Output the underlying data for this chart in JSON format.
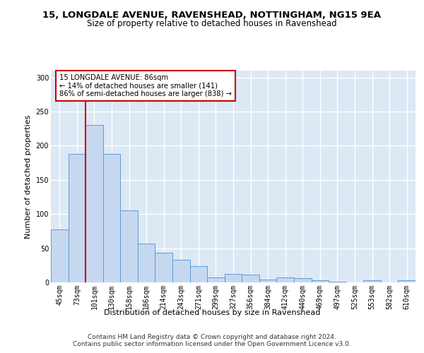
{
  "title_line1": "15, LONGDALE AVENUE, RAVENSHEAD, NOTTINGHAM, NG15 9EA",
  "title_line2": "Size of property relative to detached houses in Ravenshead",
  "xlabel": "Distribution of detached houses by size in Ravenshead",
  "ylabel": "Number of detached properties",
  "categories": [
    "45sqm",
    "73sqm",
    "101sqm",
    "130sqm",
    "158sqm",
    "186sqm",
    "214sqm",
    "243sqm",
    "271sqm",
    "299sqm",
    "327sqm",
    "356sqm",
    "384sqm",
    "412sqm",
    "440sqm",
    "469sqm",
    "497sqm",
    "525sqm",
    "553sqm",
    "582sqm",
    "610sqm"
  ],
  "values": [
    77,
    188,
    230,
    188,
    105,
    57,
    43,
    33,
    24,
    7,
    12,
    11,
    4,
    7,
    6,
    3,
    1,
    0,
    3,
    0,
    3
  ],
  "bar_color": "#c5d8f0",
  "bar_edge_color": "#5b9bd5",
  "property_line_x": 1.5,
  "annotation_text": "15 LONGDALE AVENUE: 86sqm\n← 14% of detached houses are smaller (141)\n86% of semi-detached houses are larger (838) →",
  "vline_color": "#cc0000",
  "annotation_box_color": "#ffffff",
  "annotation_box_edge": "#cc0000",
  "ylim": [
    0,
    310
  ],
  "yticks": [
    0,
    50,
    100,
    150,
    200,
    250,
    300
  ],
  "footer_line1": "Contains HM Land Registry data © Crown copyright and database right 2024.",
  "footer_line2": "Contains public sector information licensed under the Open Government Licence v3.0.",
  "bg_color": "#dde8f5",
  "title_fontsize": 9.5,
  "subtitle_fontsize": 8.5,
  "axis_label_fontsize": 8,
  "tick_fontsize": 7,
  "footer_fontsize": 6.5
}
